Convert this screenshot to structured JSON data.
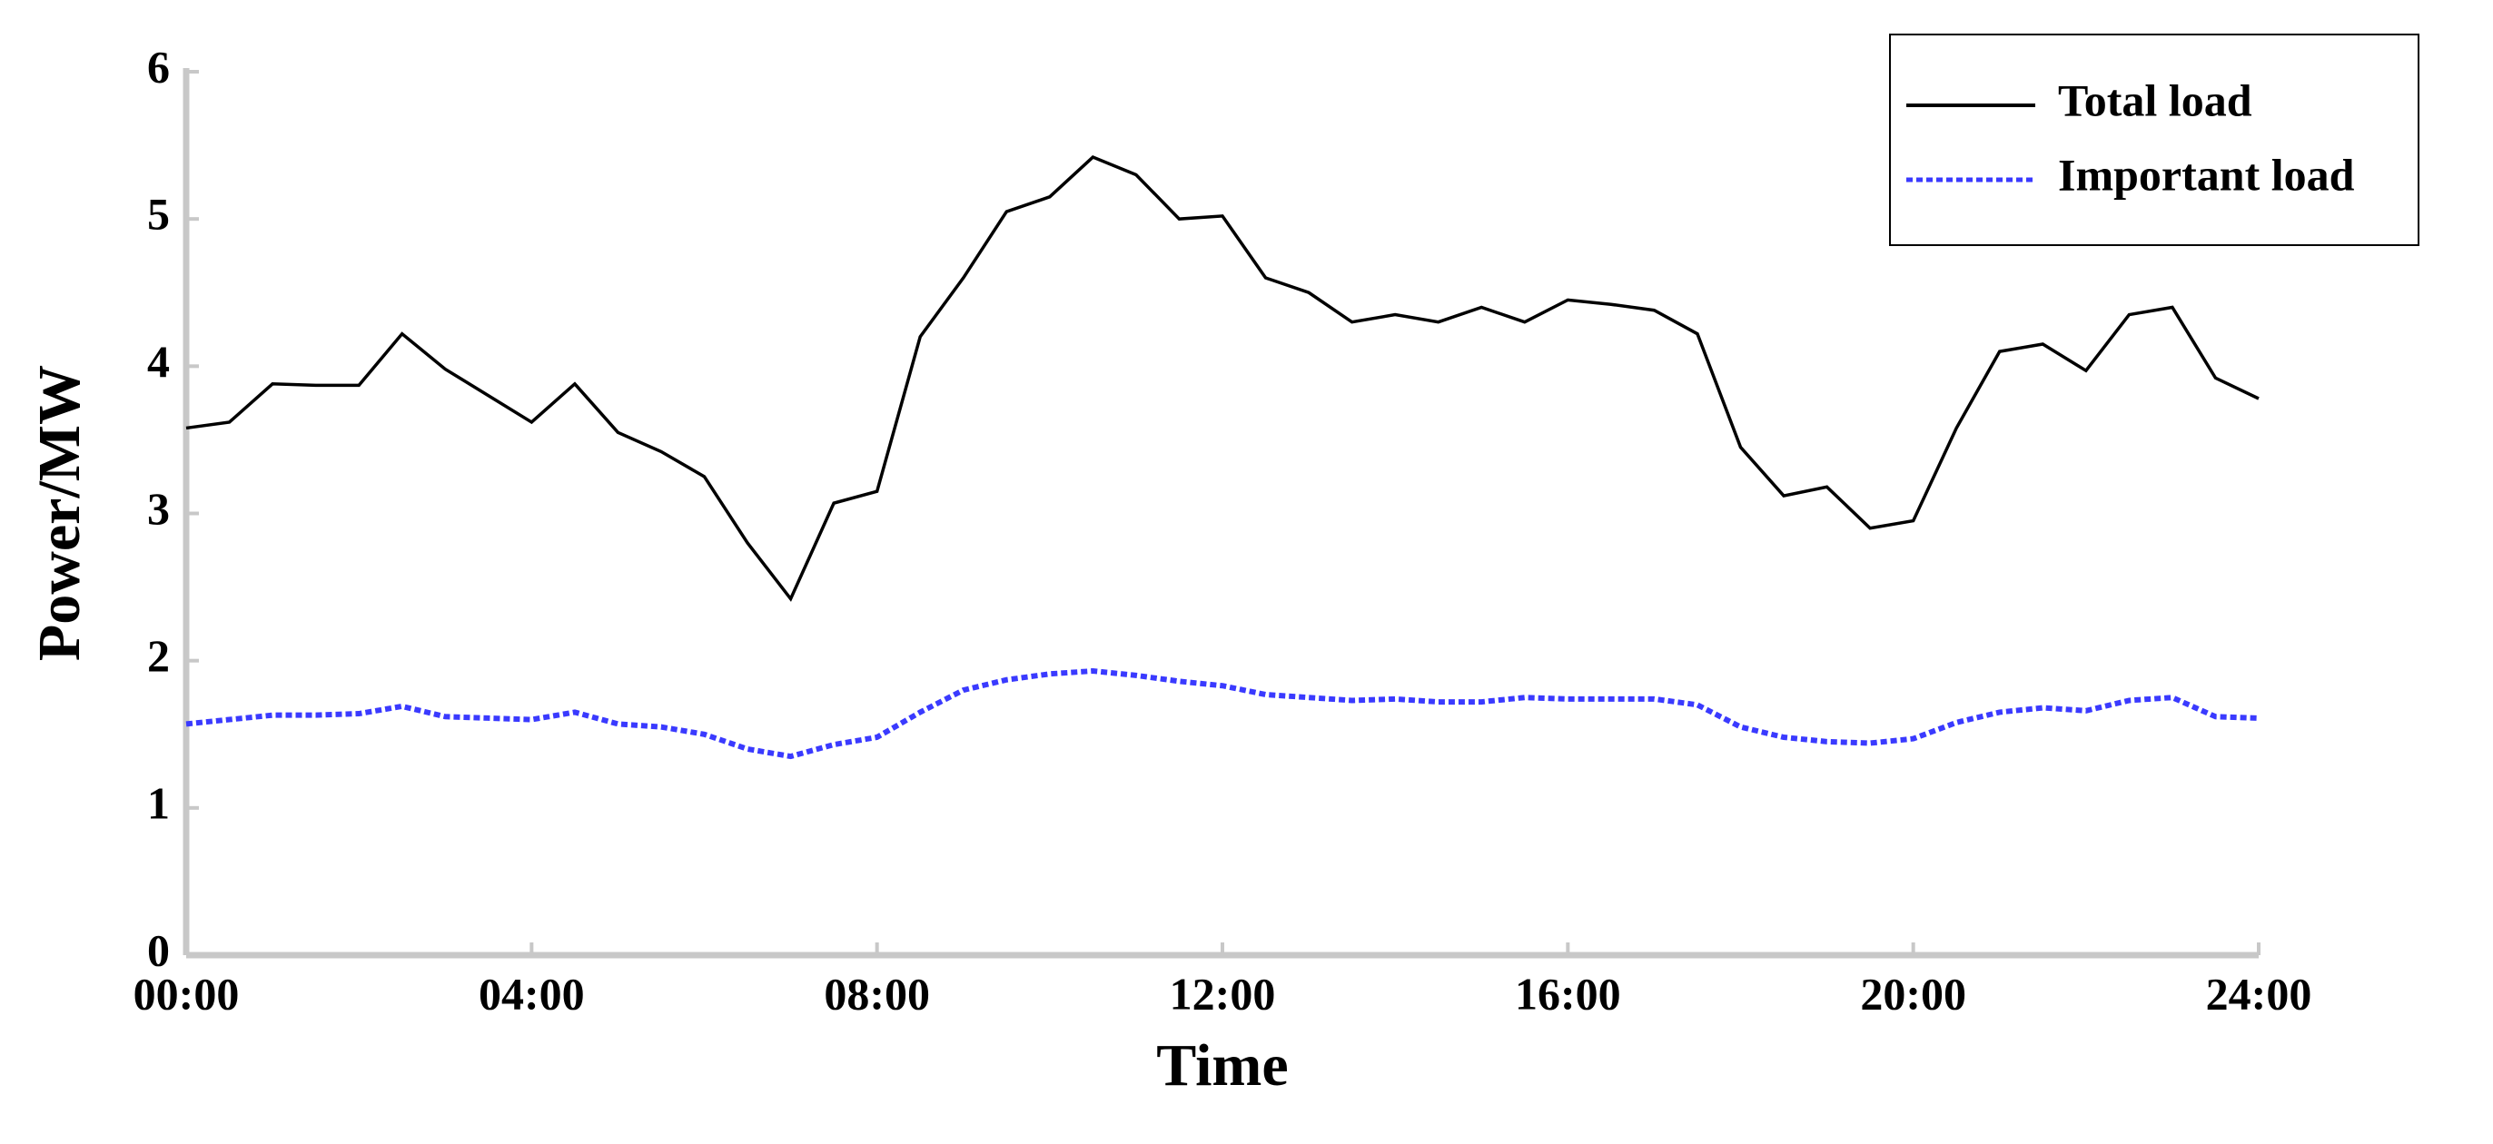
{
  "chart_data": {
    "type": "line",
    "xlabel": "Time",
    "ylabel": "Power/MW",
    "x": [
      0,
      0.5,
      1,
      1.5,
      2,
      2.5,
      3,
      3.5,
      4,
      4.5,
      5,
      5.5,
      6,
      6.5,
      7,
      7.5,
      8,
      8.5,
      9,
      9.5,
      10,
      10.5,
      11,
      11.5,
      12,
      12.5,
      13,
      13.5,
      14,
      14.5,
      15,
      15.5,
      16,
      16.5,
      17,
      17.5,
      18,
      18.5,
      19,
      19.5,
      20,
      20.5,
      21,
      21.5,
      22,
      22.5,
      23,
      23.5,
      24
    ],
    "series": [
      {
        "name": "Total load",
        "color": "#000000",
        "dash": false,
        "values": [
          3.58,
          3.62,
          3.88,
          3.87,
          3.87,
          4.22,
          3.98,
          3.8,
          3.62,
          3.88,
          3.55,
          3.42,
          3.25,
          2.8,
          2.42,
          3.07,
          3.15,
          4.2,
          4.6,
          5.05,
          5.15,
          5.42,
          5.3,
          5.0,
          5.02,
          4.6,
          4.5,
          4.3,
          4.35,
          4.3,
          4.4,
          4.3,
          4.45,
          4.42,
          4.38,
          4.22,
          3.45,
          3.12,
          3.18,
          2.9,
          2.95,
          3.58,
          4.1,
          4.15,
          3.97,
          4.35,
          4.4,
          3.92,
          3.78
        ]
      },
      {
        "name": "Important load",
        "color": "#3a3aff",
        "dash": true,
        "values": [
          1.57,
          1.6,
          1.63,
          1.63,
          1.64,
          1.69,
          1.62,
          1.61,
          1.6,
          1.65,
          1.57,
          1.55,
          1.5,
          1.4,
          1.35,
          1.43,
          1.48,
          1.65,
          1.8,
          1.87,
          1.91,
          1.93,
          1.9,
          1.86,
          1.83,
          1.77,
          1.75,
          1.73,
          1.74,
          1.72,
          1.72,
          1.75,
          1.74,
          1.74,
          1.74,
          1.7,
          1.55,
          1.48,
          1.45,
          1.44,
          1.47,
          1.58,
          1.65,
          1.68,
          1.66,
          1.73,
          1.75,
          1.62,
          1.61
        ]
      }
    ],
    "xlim": [
      0,
      24
    ],
    "xticks": [
      {
        "value": 0,
        "label": "00:00"
      },
      {
        "value": 4,
        "label": "04:00"
      },
      {
        "value": 8,
        "label": "08:00"
      },
      {
        "value": 12,
        "label": "12:00"
      },
      {
        "value": 16,
        "label": "16:00"
      },
      {
        "value": 20,
        "label": "20:00"
      },
      {
        "value": 24,
        "label": "24:00"
      }
    ],
    "ylim": [
      0,
      6
    ],
    "yticks": [
      0,
      1,
      2,
      3,
      4,
      5,
      6
    ],
    "legend": "upper right"
  }
}
